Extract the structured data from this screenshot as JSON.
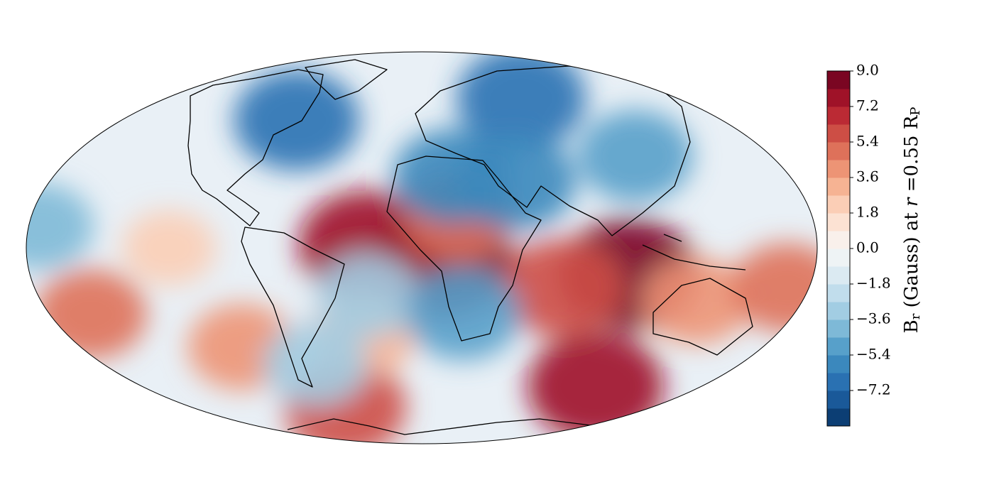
{
  "chart_data": {
    "type": "contour_map",
    "projection": "mollweide",
    "colormap": [
      "#053061",
      "#2166ac",
      "#4393c3",
      "#92c5de",
      "#d1e5f0",
      "#f7f7f7",
      "#fddbc7",
      "#f4a582",
      "#d6604d",
      "#b2182b",
      "#67001f"
    ],
    "clim": [
      -9,
      9
    ],
    "levels": 20,
    "colorbar_ticks": [
      {
        "value": -7.2,
        "label": "−7.2"
      },
      {
        "value": -5.4,
        "label": "−5.4"
      },
      {
        "value": -3.6,
        "label": "−3.6"
      },
      {
        "value": -1.8,
        "label": "−1.8"
      },
      {
        "value": 0,
        "label": "0.0"
      },
      {
        "value": 1.8,
        "label": "1.8"
      },
      {
        "value": 3.6,
        "label": "3.6"
      },
      {
        "value": 5.4,
        "label": "5.4"
      },
      {
        "value": 7.2,
        "label": "7.2"
      },
      {
        "value": 9,
        "label": "9.0"
      }
    ],
    "colorbar_label": [
      "B",
      "r",
      " (Gauss) at ",
      "r",
      " =0.55 R",
      "P"
    ],
    "features": [
      {
        "lon": 10,
        "lat": -5,
        "value": 8.5
      },
      {
        "lon": -25,
        "lat": 1,
        "value": 8
      },
      {
        "lon": 95,
        "lat": -10,
        "value": 8.5
      },
      {
        "lon": 65,
        "lat": -15,
        "value": 6
      },
      {
        "lon": 17,
        "lat": 12,
        "value": 4.5
      },
      {
        "lon": 112,
        "lat": -55,
        "value": 8
      },
      {
        "lon": -60,
        "lat": -65,
        "value": 6
      },
      {
        "lon": 130,
        "lat": -20,
        "value": 4
      },
      {
        "lon": 170,
        "lat": -15,
        "value": 4.5
      },
      {
        "lon": -160,
        "lat": -25,
        "value": 4.5
      },
      {
        "lon": -95,
        "lat": -38,
        "value": 4
      },
      {
        "lon": -30,
        "lat": -33,
        "value": 3.5
      },
      {
        "lon": -115,
        "lat": 0,
        "value": 2
      },
      {
        "lon": -75,
        "lat": 50,
        "value": -6.5
      },
      {
        "lon": 70,
        "lat": 60,
        "value": -7
      },
      {
        "lon": 15,
        "lat": 27,
        "value": -5.5
      },
      {
        "lon": 45,
        "lat": 25,
        "value": -6
      },
      {
        "lon": 110,
        "lat": 35,
        "value": -5
      },
      {
        "lon": -25,
        "lat": -18,
        "value": -3.5
      },
      {
        "lon": 20,
        "lat": -25,
        "value": -5
      },
      {
        "lon": -175,
        "lat": 8,
        "value": -4
      },
      {
        "lon": -60,
        "lat": -45,
        "value": -3.5
      }
    ]
  }
}
